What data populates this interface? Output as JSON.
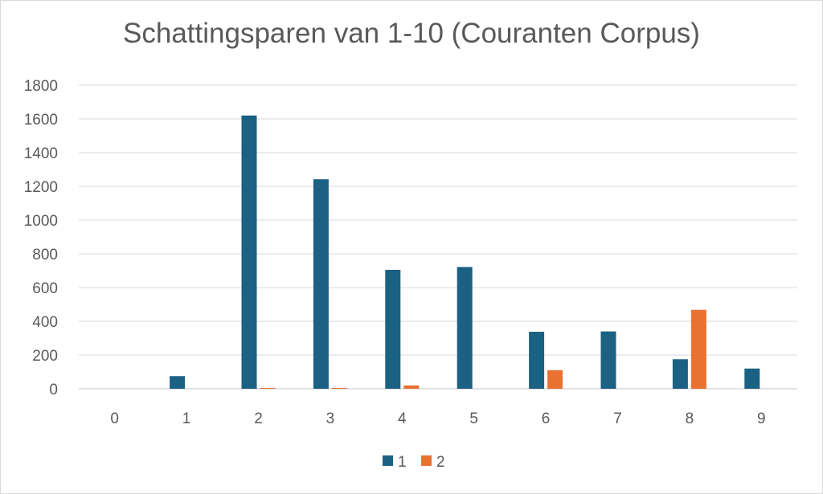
{
  "chart_data": {
    "type": "bar",
    "title": "Schattingsparen van 1-10 (Couranten Corpus)",
    "xlabel": "",
    "ylabel": "",
    "categories": [
      "0",
      "1",
      "2",
      "3",
      "4",
      "5",
      "6",
      "7",
      "8",
      "9"
    ],
    "series": [
      {
        "name": "1",
        "color": "#1a6184",
        "values": [
          0,
          75,
          1620,
          1242,
          705,
          722,
          338,
          340,
          175,
          120
        ]
      },
      {
        "name": "2",
        "color": "#e97132",
        "values": [
          0,
          0,
          5,
          5,
          20,
          0,
          110,
          0,
          468,
          0
        ]
      }
    ],
    "ylim": [
      0,
      1800
    ],
    "yticks": [
      "0",
      "200",
      "400",
      "600",
      "800",
      "1000",
      "1200",
      "1400",
      "1600",
      "1800"
    ],
    "grid": true,
    "legend_position": "bottom"
  }
}
